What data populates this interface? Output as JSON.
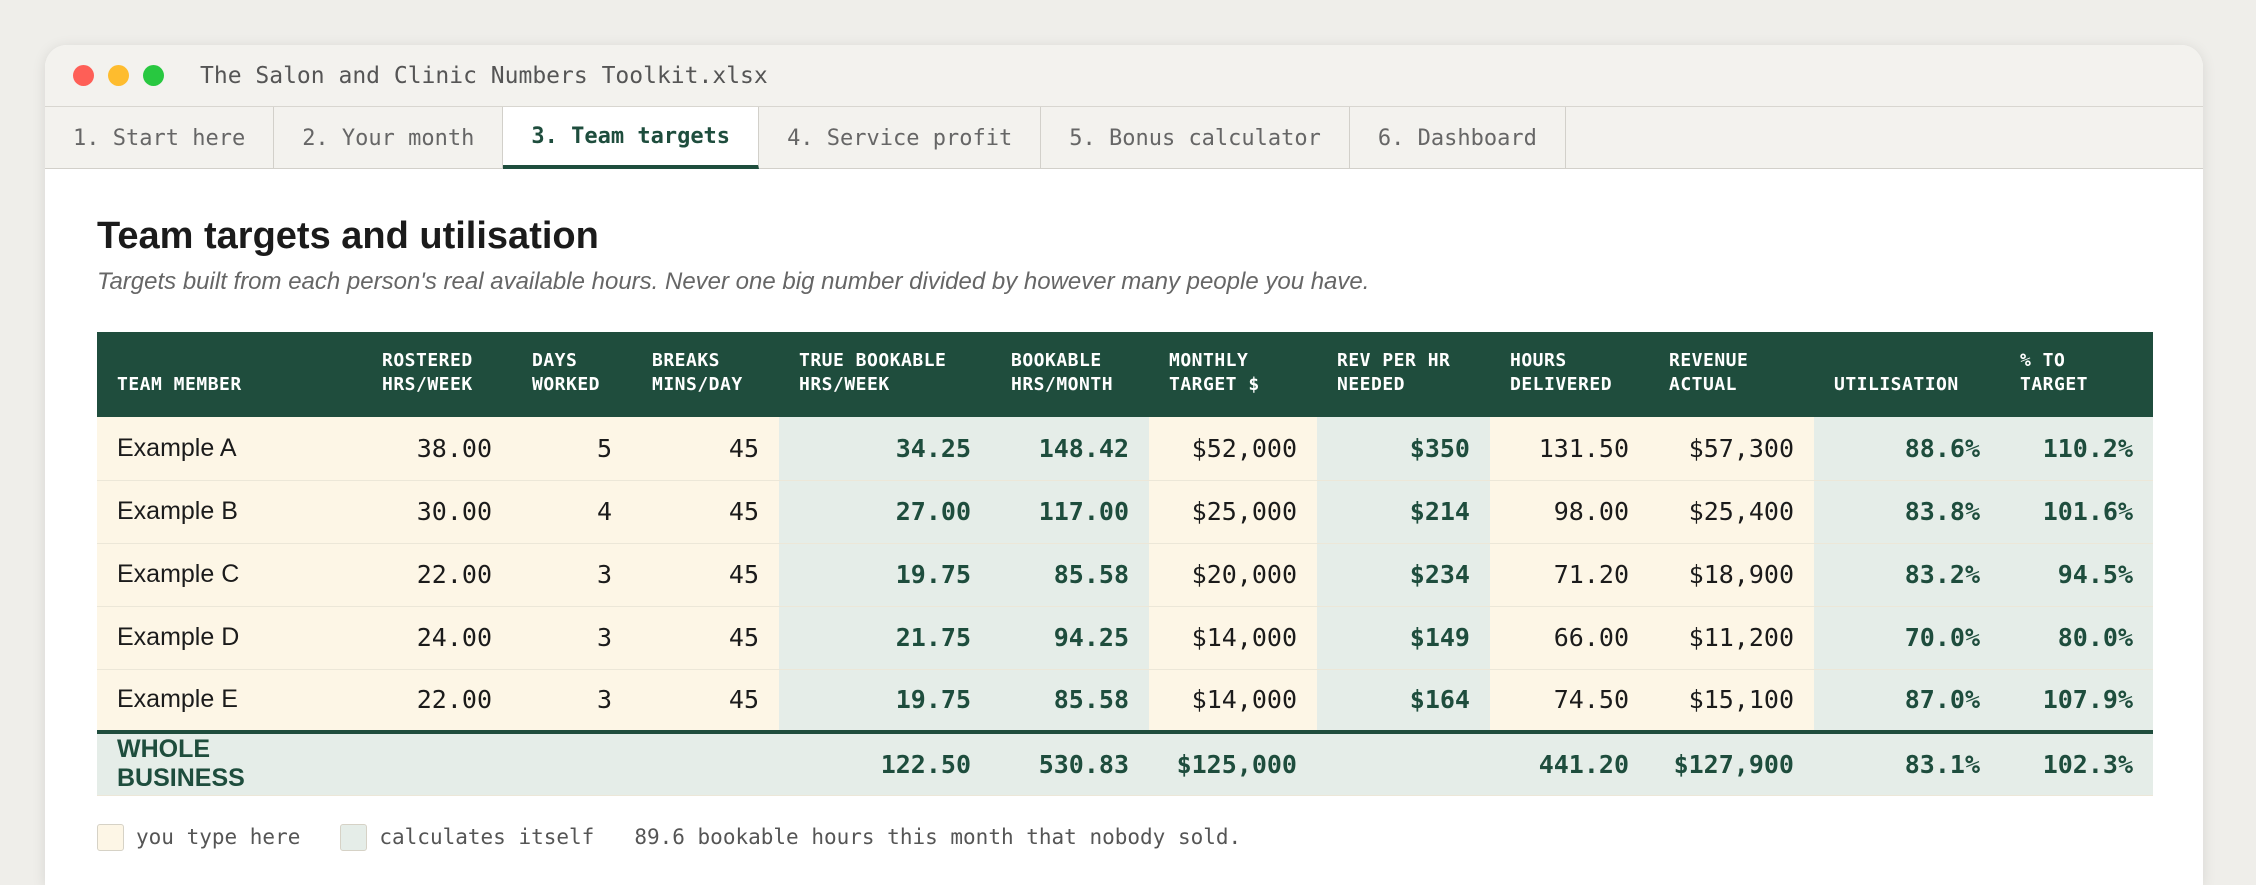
{
  "window": {
    "title": "The Salon and Clinic Numbers Toolkit.xlsx"
  },
  "tabs": [
    {
      "label": "1. Start here"
    },
    {
      "label": "2. Your month"
    },
    {
      "label": "3. Team targets"
    },
    {
      "label": "4. Service profit"
    },
    {
      "label": "5. Bonus calculator"
    },
    {
      "label": "6. Dashboard"
    }
  ],
  "page": {
    "title": "Team targets and utilisation",
    "subtitle": "Targets built from each person's real available hours. Never one big number divided by however many people you have."
  },
  "table": {
    "headers": [
      {
        "l1": "TEAM MEMBER",
        "l2": ""
      },
      {
        "l1": "ROSTERED",
        "l2": "HRS/WEEK"
      },
      {
        "l1": "DAYS",
        "l2": "WORKED"
      },
      {
        "l1": "BREAKS",
        "l2": "MINS/DAY"
      },
      {
        "l1": "TRUE BOOKABLE",
        "l2": "HRS/WEEK"
      },
      {
        "l1": "BOOKABLE",
        "l2": "HRS/MONTH"
      },
      {
        "l1": "MONTHLY",
        "l2": "TARGET $"
      },
      {
        "l1": "REV PER HR",
        "l2": "NEEDED"
      },
      {
        "l1": "HOURS",
        "l2": "DELIVERED"
      },
      {
        "l1": "REVENUE",
        "l2": "ACTUAL"
      },
      {
        "l1": "UTILISATION",
        "l2": ""
      },
      {
        "l1": "% TO",
        "l2": "TARGET"
      }
    ],
    "rows": [
      [
        "Example A",
        "38.00",
        "5",
        "45",
        "34.25",
        "148.42",
        "$52,000",
        "$350",
        "131.50",
        "$57,300",
        "88.6%",
        "110.2%"
      ],
      [
        "Example B",
        "30.00",
        "4",
        "45",
        "27.00",
        "117.00",
        "$25,000",
        "$214",
        "98.00",
        "$25,400",
        "83.8%",
        "101.6%"
      ],
      [
        "Example C",
        "22.00",
        "3",
        "45",
        "19.75",
        "85.58",
        "$20,000",
        "$234",
        "71.20",
        "$18,900",
        "83.2%",
        "94.5%"
      ],
      [
        "Example D",
        "24.00",
        "3",
        "45",
        "21.75",
        "94.25",
        "$14,000",
        "$149",
        "66.00",
        "$11,200",
        "70.0%",
        "80.0%"
      ],
      [
        "Example E",
        "22.00",
        "3",
        "45",
        "19.75",
        "85.58",
        "$14,000",
        "$164",
        "74.50",
        "$15,100",
        "87.0%",
        "107.9%"
      ]
    ],
    "total": [
      "WHOLE BUSINESS",
      "",
      "",
      "",
      "122.50",
      "530.83",
      "$125,000",
      "",
      "441.20",
      "$127,900",
      "83.1%",
      "102.3%"
    ]
  },
  "legend": {
    "input_label": "you type here",
    "calc_label": "calculates itself",
    "note": "89.6 bookable hours this month that nobody sold."
  },
  "colors": {
    "header": "#1f4d3d",
    "input_cell": "#fdf6e6",
    "calc_cell": "#e5ede8",
    "accent": "#1e4d3d"
  }
}
